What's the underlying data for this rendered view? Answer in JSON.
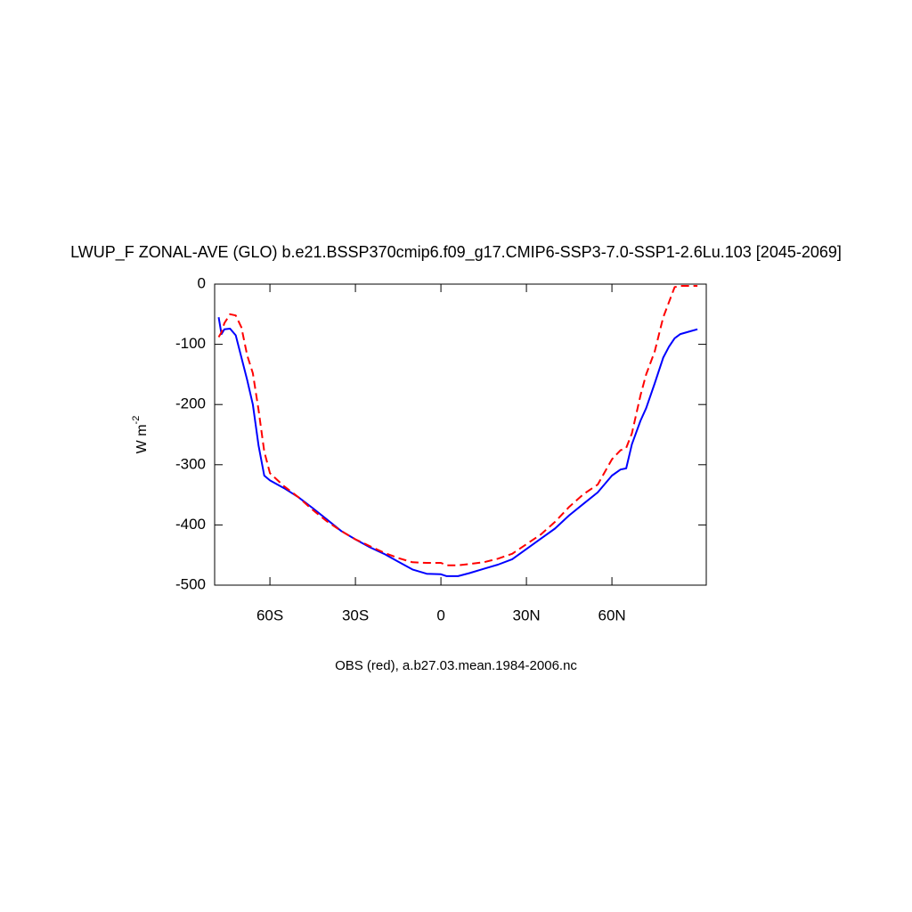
{
  "chart_data": {
    "type": "line",
    "title": "LWUP_F ZONAL-AVE (GLO) b.e21.BSSP370cmip6.f09_g17.CMIP6-SSP3-7.0-SSP1-2.6Lu.103 [2045-2069]",
    "subtitle": "OBS (red), a.b27.03.mean.1984-2006.nc",
    "y_label": "W m",
    "y_label_sup": "-2",
    "x": [
      -78,
      -77,
      -76,
      -74,
      -72,
      -70,
      -68,
      -66,
      -64,
      -62,
      -60,
      -55,
      -50,
      -45,
      -40,
      -35,
      -30,
      -25,
      -20,
      -15,
      -10,
      -5,
      0,
      2,
      6,
      10,
      15,
      20,
      25,
      30,
      35,
      40,
      45,
      50,
      55,
      60,
      63,
      65,
      67,
      70,
      72,
      75,
      78,
      80,
      82,
      84,
      87,
      90
    ],
    "series": [
      {
        "color": "#0000ff",
        "dash": false,
        "values": [
          -55,
          -83,
          -75,
          -74,
          -85,
          -122,
          -159,
          -200,
          -268,
          -318,
          -326,
          -339,
          -354,
          -372,
          -391,
          -410,
          -424,
          -437,
          -448,
          -461,
          -474,
          -481,
          -482,
          -485,
          -485,
          -480,
          -473,
          -466,
          -457,
          -440,
          -423,
          -406,
          -384,
          -365,
          -346,
          -318,
          -308,
          -306,
          -266,
          -227,
          -206,
          -165,
          -122,
          -104,
          -90,
          -83,
          -79,
          -75
        ]
      },
      {
        "color": "#ff0000",
        "dash": true,
        "values": [
          -88,
          -80,
          -65,
          -50,
          -52,
          -72,
          -118,
          -148,
          -209,
          -278,
          -314,
          -336,
          -354,
          -375,
          -394,
          -410,
          -424,
          -435,
          -446,
          -455,
          -462,
          -463,
          -463,
          -467,
          -467,
          -465,
          -462,
          -456,
          -448,
          -432,
          -416,
          -395,
          -370,
          -349,
          -333,
          -291,
          -276,
          -272,
          -248,
          -185,
          -150,
          -112,
          -55,
          -30,
          -5,
          -3,
          -3,
          -3
        ]
      }
    ],
    "xlim": [
      -79.4,
      93.1
    ],
    "ylim": [
      -500,
      0
    ],
    "xticks": [
      {
        "value": -60,
        "label": "60S"
      },
      {
        "value": -30,
        "label": "30S"
      },
      0,
      {
        "value": 30,
        "label": "30N"
      },
      {
        "value": 60,
        "label": "60N"
      }
    ],
    "yticks": [
      0,
      -100,
      -200,
      -300,
      -400,
      -500
    ]
  }
}
